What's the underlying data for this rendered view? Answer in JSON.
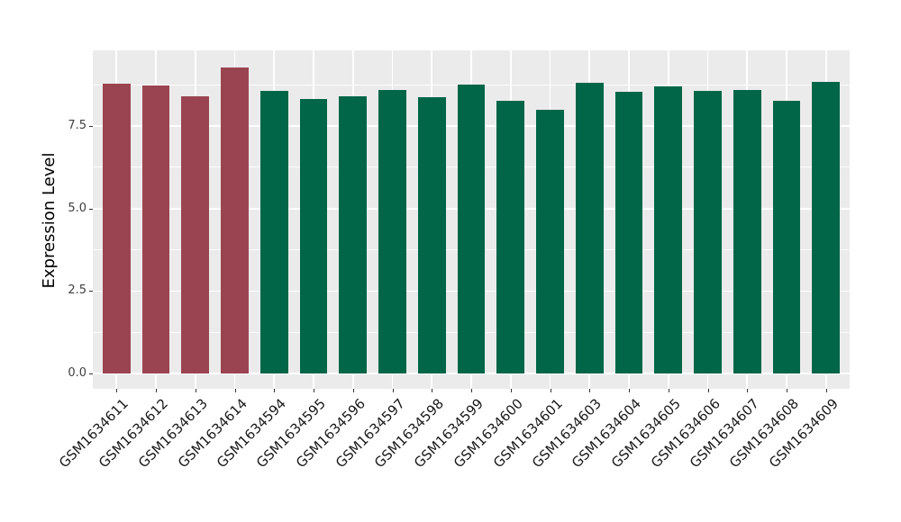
{
  "figure": {
    "background": "#FFFFFF",
    "panel_background": "#EBEBEB",
    "grid_color": "#FFFFFF",
    "tick_mark_color": "#333333",
    "y_tick_text_color": "#404040",
    "x_tick_text_color": "#1A1A1A",
    "axis_title_color": "#000000"
  },
  "chart_data": {
    "type": "bar",
    "title": "",
    "xlabel": "",
    "ylabel": "Expression Level",
    "legend": "none",
    "grid": "on",
    "categories": [
      "GSM1634611",
      "GSM1634612",
      "GSM1634613",
      "GSM1634614",
      "GSM1634594",
      "GSM1634595",
      "GSM1634596",
      "GSM1634597",
      "GSM1634598",
      "GSM1634599",
      "GSM1634600",
      "GSM1634601",
      "GSM1634603",
      "GSM1634604",
      "GSM1634605",
      "GSM1634606",
      "GSM1634607",
      "GSM1634608",
      "GSM1634609"
    ],
    "values": [
      8.79,
      8.74,
      8.41,
      9.27,
      8.55,
      8.33,
      8.41,
      8.59,
      8.36,
      8.76,
      8.27,
      8.0,
      8.81,
      8.53,
      8.7,
      8.55,
      8.59,
      8.27,
      8.83
    ],
    "groups": [
      "group1",
      "group1",
      "group1",
      "group1",
      "group2",
      "group2",
      "group2",
      "group2",
      "group2",
      "group2",
      "group2",
      "group2",
      "group2",
      "group2",
      "group2",
      "group2",
      "group2",
      "group2",
      "group2"
    ],
    "group_colors": {
      "group1": "#9B4451",
      "group2": "#006647"
    },
    "yticks": [
      0.0,
      2.5,
      5.0,
      7.5
    ],
    "ytick_labels": [
      "0.0",
      "2.5",
      "5.0",
      "7.5"
    ],
    "yticks_minor": [
      1.25,
      3.75,
      6.25,
      8.75
    ],
    "ylim": [
      -0.46,
      9.79
    ],
    "bar_width_fraction": 0.7
  }
}
